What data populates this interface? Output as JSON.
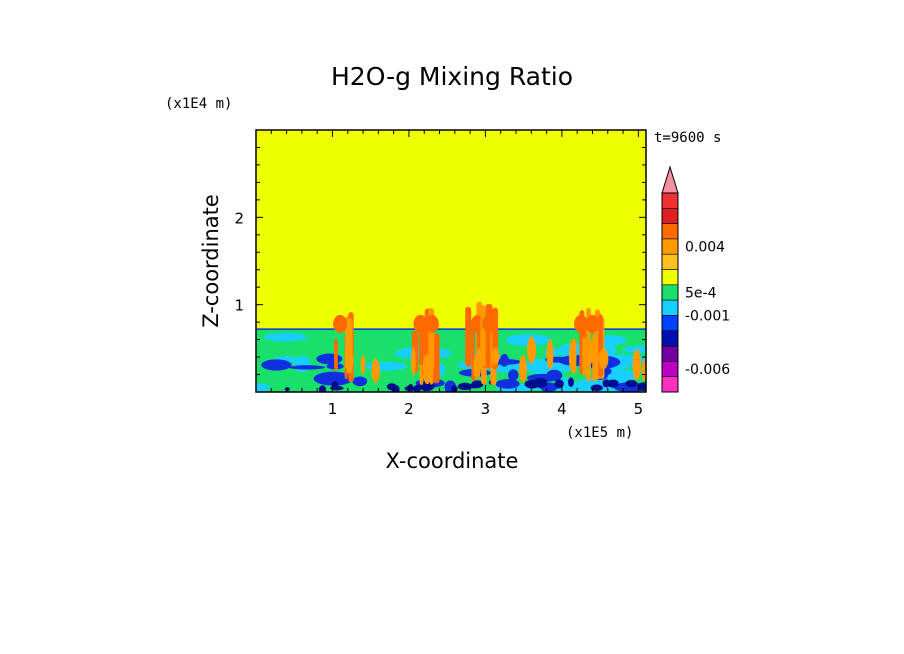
{
  "chart_data": {
    "type": "heatmap",
    "title": "H2O-g Mixing Ratio",
    "xlabel": "X-coordinate",
    "ylabel": "Z-coordinate",
    "x_scale_label": "(x1E5 m)",
    "y_scale_label": "(x1E4 m)",
    "time_label": "t=9600 s",
    "x_range": [
      0.0,
      5.1
    ],
    "y_range": [
      0.0,
      3.0
    ],
    "x_ticks": [
      "1",
      "2",
      "3",
      "4",
      "5"
    ],
    "x_tick_values": [
      1,
      2,
      3,
      4,
      5
    ],
    "y_ticks": [
      "1",
      "2"
    ],
    "y_tick_values": [
      1,
      2
    ],
    "boundary_layer_top": 0.72,
    "plume_centers": [
      1.1,
      2.15,
      2.3,
      2.9,
      3.05,
      4.25,
      4.4
    ],
    "colorbar": {
      "labels": [
        "0.004",
        "5e-4",
        "-0.001",
        "-0.006"
      ],
      "label_positions": [
        0.004,
        0.0005,
        -0.001,
        -0.006
      ],
      "colors": [
        "#f090a0",
        "#f03030",
        "#e02020",
        "#ff6a00",
        "#ff9a00",
        "#ffc020",
        "#f0ff00",
        "#18e06a",
        "#18d0ff",
        "#0040ff",
        "#0010b0",
        "#7000a0",
        "#c000c0",
        "#ff30c0"
      ]
    },
    "field_colors": {
      "background": "#f0ff00",
      "green": "#18e06a",
      "cyan": "#18d0ff",
      "blue": "#1030e0",
      "navy": "#000c90",
      "orange": "#ff9a00",
      "red": "#ff6a00"
    }
  }
}
